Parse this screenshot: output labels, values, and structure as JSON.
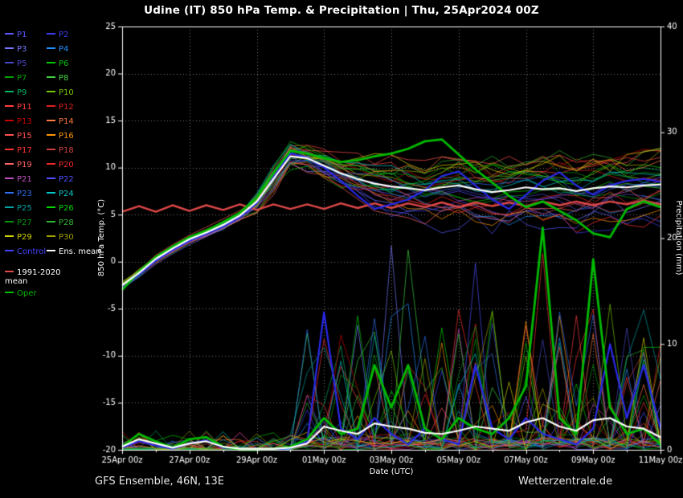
{
  "title": "Udine  (IT)  850 hPa Temp. & Precipitation | Thu, 25Apr2024 00Z",
  "footer": {
    "left": "GFS Ensemble, 46N, 13E",
    "right": "Wetterzentrale.de"
  },
  "legend": {
    "members": [
      {
        "label": "P1",
        "color": "#5858ff"
      },
      {
        "label": "P2",
        "color": "#3c3cf0"
      },
      {
        "label": "P3",
        "color": "#7878ff"
      },
      {
        "label": "P4",
        "color": "#2090ff"
      },
      {
        "label": "P5",
        "color": "#4848c8"
      },
      {
        "label": "P6",
        "color": "#00c800"
      },
      {
        "label": "P7",
        "color": "#00a000"
      },
      {
        "label": "P8",
        "color": "#40d040"
      },
      {
        "label": "P9",
        "color": "#00b464"
      },
      {
        "label": "P10",
        "color": "#78c800"
      },
      {
        "label": "P11",
        "color": "#ff4040"
      },
      {
        "label": "P12",
        "color": "#e02020"
      },
      {
        "label": "P13",
        "color": "#c80000"
      },
      {
        "label": "P14",
        "color": "#ff7840"
      },
      {
        "label": "P15",
        "color": "#ff5050"
      },
      {
        "label": "P16",
        "color": "#ff9600"
      },
      {
        "label": "P17",
        "color": "#ff3232"
      },
      {
        "label": "P18",
        "color": "#d04040"
      },
      {
        "label": "P19",
        "color": "#ff6464"
      },
      {
        "label": "P20",
        "color": "#f02828"
      },
      {
        "label": "P21",
        "color": "#c050c0"
      },
      {
        "label": "P22",
        "color": "#5050ff"
      },
      {
        "label": "P23",
        "color": "#3070f0"
      },
      {
        "label": "P24",
        "color": "#00c8c8"
      },
      {
        "label": "P25",
        "color": "#00a0a0"
      },
      {
        "label": "P26",
        "color": "#00d200"
      },
      {
        "label": "P27",
        "color": "#00960a"
      },
      {
        "label": "P28",
        "color": "#32b432"
      },
      {
        "label": "P29",
        "color": "#d2d200"
      },
      {
        "label": "P30",
        "color": "#a0a000"
      }
    ],
    "control": {
      "label": "Control",
      "color": "#4444ff"
    },
    "ens_mean": {
      "label": "Ens. mean",
      "color": "#ffffff"
    },
    "clim_mean": {
      "label": "1991-2020 mean",
      "color": "#e04848",
      "text_color": "#ffffff"
    },
    "oper": {
      "label": "Oper",
      "color": "#00bb00"
    }
  },
  "chart_data": {
    "type": "line",
    "title": "Udine  (IT)  850 hPa Temp. & Precipitation | Thu, 25Apr2024 00Z",
    "xlabel": "Date (UTC)",
    "ylabel_left": "850 hPa Temp. (°C)",
    "ylabel_right": "Precipitation (mm)",
    "x_tick_labels": [
      "25Apr 00z",
      "27Apr 00z",
      "29Apr 00z",
      "01May 00z",
      "03May 00z",
      "05May 00z",
      "07May 00z",
      "09May 00z",
      "11May 00z"
    ],
    "x_range_days": [
      0,
      16
    ],
    "x_step_days": 0.5,
    "ylim_left": [
      -20,
      25
    ],
    "ylim_right": [
      0,
      40
    ],
    "yticks_left": [
      25,
      20,
      15,
      10,
      5,
      0,
      -5,
      -10,
      -15,
      -20
    ],
    "yticks_right": [
      0,
      10,
      20,
      30,
      40
    ],
    "grid": true,
    "legend_position": "left",
    "ensemble": {
      "count": 30,
      "seed": 20240425,
      "note": "30 thin perturbation members P1-P30; tight cluster days 0-4, fan-out afterwards; precipitation spikes mainly after 30Apr"
    },
    "series": [
      {
        "name": "1991-2020 mean",
        "axis": "temp",
        "color": "#e04848",
        "width": 2.4,
        "values": [
          5.3,
          5.9,
          5.3,
          6.0,
          5.4,
          6.0,
          5.5,
          6.1,
          5.5,
          6.1,
          5.6,
          6.1,
          5.6,
          6.2,
          5.7,
          6.2,
          5.7,
          6.2,
          5.8,
          6.3,
          5.8,
          6.3,
          5.9,
          6.3,
          5.9,
          6.4,
          6.0,
          6.4,
          6.0,
          6.4,
          6.1,
          6.5,
          6.1
        ]
      },
      {
        "name": "Control temp",
        "axis": "temp",
        "color": "#2828e8",
        "width": 2.2,
        "values": [
          -2.8,
          -1.4,
          0.1,
          1.2,
          2.2,
          2.9,
          3.7,
          4.7,
          6.2,
          9.0,
          11.5,
          11.1,
          10.0,
          8.6,
          7.0,
          5.6,
          6.1,
          6.6,
          7.6,
          9.1,
          9.6,
          8.1,
          6.6,
          5.6,
          7.1,
          8.6,
          9.5,
          8.1,
          7.1,
          8.1,
          8.6,
          8.8,
          8.5
        ]
      },
      {
        "name": "Control precip",
        "axis": "precip",
        "color": "#2828e8",
        "width": 2.2,
        "values": [
          0.2,
          0.8,
          0.4,
          0.1,
          0.6,
          0.9,
          0.2,
          0.0,
          0.0,
          0.0,
          0.2,
          0.8,
          13.0,
          2.0,
          1.0,
          3.0,
          1.5,
          0.5,
          2.0,
          1.0,
          0.5,
          8.0,
          2.0,
          1.0,
          3.0,
          1.5,
          1.0,
          0.5,
          2.0,
          10.0,
          3.0,
          8.0,
          2.0
        ]
      },
      {
        "name": "Oper temp",
        "axis": "temp",
        "color": "#00bb00",
        "width": 2.8,
        "values": [
          -3.0,
          -1.1,
          0.5,
          1.6,
          2.6,
          3.3,
          4.2,
          5.2,
          6.8,
          9.4,
          11.8,
          11.5,
          11.0,
          10.6,
          10.8,
          11.2,
          11.5,
          12.0,
          12.8,
          13.0,
          11.4,
          9.8,
          8.4,
          7.0,
          5.8,
          6.4,
          5.4,
          4.4,
          3.0,
          2.6,
          5.6,
          6.4,
          5.8
        ]
      },
      {
        "name": "Oper precip",
        "axis": "precip",
        "color": "#00bb00",
        "width": 2.8,
        "values": [
          0.3,
          1.5,
          0.8,
          0.2,
          1.0,
          1.2,
          0.3,
          0.0,
          0.0,
          0.1,
          0.3,
          1.0,
          3.0,
          1.5,
          2.0,
          8.0,
          4.0,
          8.0,
          2.0,
          1.0,
          3.0,
          2.0,
          1.5,
          3.0,
          6.0,
          21.0,
          3.0,
          1.5,
          18.0,
          4.0,
          1.5,
          2.0,
          0.5
        ]
      },
      {
        "name": "Ens. mean temp",
        "axis": "temp",
        "color": "#ffffff",
        "width": 2.2,
        "values": [
          -2.5,
          -1.2,
          0.3,
          1.4,
          2.4,
          3.1,
          3.9,
          4.9,
          6.4,
          8.8,
          11.2,
          11.0,
          10.2,
          9.4,
          8.8,
          8.3,
          8.0,
          7.8,
          7.6,
          7.9,
          8.1,
          7.7,
          7.4,
          7.6,
          7.9,
          7.7,
          7.8,
          7.5,
          7.8,
          8.0,
          7.9,
          8.1,
          8.2
        ]
      },
      {
        "name": "Ens. mean precip",
        "axis": "precip",
        "color": "#ffffff",
        "width": 2.2,
        "values": [
          0.3,
          1.0,
          0.6,
          0.2,
          0.6,
          0.8,
          0.3,
          0.1,
          0.1,
          0.1,
          0.2,
          0.6,
          2.2,
          1.8,
          1.5,
          2.5,
          2.2,
          2.0,
          1.6,
          1.5,
          1.8,
          2.2,
          2.0,
          1.8,
          2.6,
          3.0,
          2.2,
          1.8,
          2.8,
          3.0,
          2.2,
          2.0,
          1.2
        ]
      }
    ]
  }
}
